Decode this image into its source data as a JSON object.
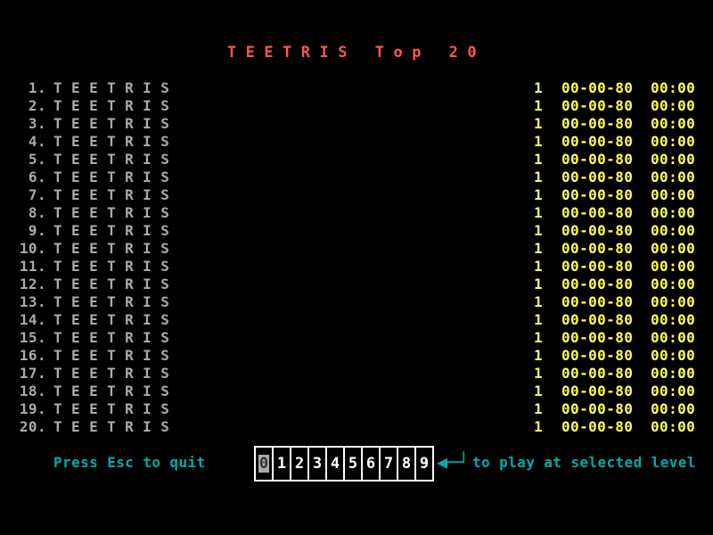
{
  "title": "TEETRIS Top 20",
  "scores": [
    {
      "rank": "1.",
      "name": "TEETRIS",
      "level": "1",
      "date": "00-00-80",
      "time": "00:00"
    },
    {
      "rank": "2.",
      "name": "TEETRIS",
      "level": "1",
      "date": "00-00-80",
      "time": "00:00"
    },
    {
      "rank": "3.",
      "name": "TEETRIS",
      "level": "1",
      "date": "00-00-80",
      "time": "00:00"
    },
    {
      "rank": "4.",
      "name": "TEETRIS",
      "level": "1",
      "date": "00-00-80",
      "time": "00:00"
    },
    {
      "rank": "5.",
      "name": "TEETRIS",
      "level": "1",
      "date": "00-00-80",
      "time": "00:00"
    },
    {
      "rank": "6.",
      "name": "TEETRIS",
      "level": "1",
      "date": "00-00-80",
      "time": "00:00"
    },
    {
      "rank": "7.",
      "name": "TEETRIS",
      "level": "1",
      "date": "00-00-80",
      "time": "00:00"
    },
    {
      "rank": "8.",
      "name": "TEETRIS",
      "level": "1",
      "date": "00-00-80",
      "time": "00:00"
    },
    {
      "rank": "9.",
      "name": "TEETRIS",
      "level": "1",
      "date": "00-00-80",
      "time": "00:00"
    },
    {
      "rank": "10.",
      "name": "TEETRIS",
      "level": "1",
      "date": "00-00-80",
      "time": "00:00"
    },
    {
      "rank": "11.",
      "name": "TEETRIS",
      "level": "1",
      "date": "00-00-80",
      "time": "00:00"
    },
    {
      "rank": "12.",
      "name": "TEETRIS",
      "level": "1",
      "date": "00-00-80",
      "time": "00:00"
    },
    {
      "rank": "13.",
      "name": "TEETRIS",
      "level": "1",
      "date": "00-00-80",
      "time": "00:00"
    },
    {
      "rank": "14.",
      "name": "TEETRIS",
      "level": "1",
      "date": "00-00-80",
      "time": "00:00"
    },
    {
      "rank": "15.",
      "name": "TEETRIS",
      "level": "1",
      "date": "00-00-80",
      "time": "00:00"
    },
    {
      "rank": "16.",
      "name": "TEETRIS",
      "level": "1",
      "date": "00-00-80",
      "time": "00:00"
    },
    {
      "rank": "17.",
      "name": "TEETRIS",
      "level": "1",
      "date": "00-00-80",
      "time": "00:00"
    },
    {
      "rank": "18.",
      "name": "TEETRIS",
      "level": "1",
      "date": "00-00-80",
      "time": "00:00"
    },
    {
      "rank": "19.",
      "name": "TEETRIS",
      "level": "1",
      "date": "00-00-80",
      "time": "00:00"
    },
    {
      "rank": "20.",
      "name": "TEETRIS",
      "level": "1",
      "date": "00-00-80",
      "time": "00:00"
    }
  ],
  "footer": {
    "quit_hint": "Press Esc to quit",
    "levels": [
      "0",
      "1",
      "2",
      "3",
      "4",
      "5",
      "6",
      "7",
      "8",
      "9"
    ],
    "selected_level": "0",
    "enter_icon": "enter-arrow-icon",
    "play_hint": "to play at selected level"
  },
  "colors": {
    "title": "#ff5555",
    "names": "#aaaaaa",
    "stats": "#ffff55",
    "hint": "#00aaaa"
  }
}
